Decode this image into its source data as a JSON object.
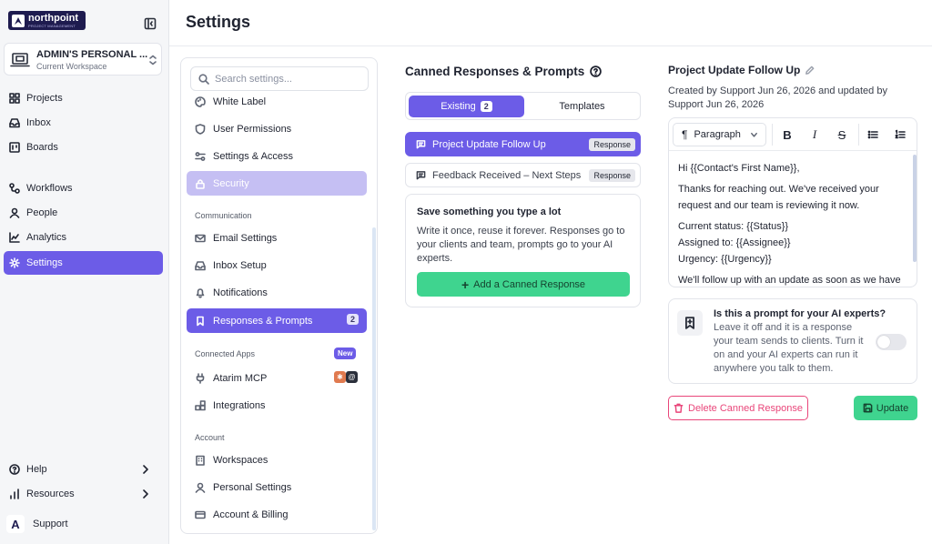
{
  "app": {
    "brand": "northpoint",
    "brand_tagline": "PROJECT MANAGEMENT",
    "support_logo_letter": "A"
  },
  "workspace": {
    "name": "ADMIN'S PERSONAL ...",
    "subtitle": "Current Workspace"
  },
  "nav": {
    "items": [
      {
        "label": "Projects",
        "icon": "grid-icon"
      },
      {
        "label": "Inbox",
        "icon": "inbox-icon"
      },
      {
        "label": "Boards",
        "icon": "board-icon"
      },
      {
        "label": "Workflows",
        "icon": "workflow-icon"
      },
      {
        "label": "People",
        "icon": "person-icon"
      },
      {
        "label": "Analytics",
        "icon": "analytics-icon"
      },
      {
        "label": "Settings",
        "icon": "gear-icon",
        "active": true
      }
    ],
    "help": "Help",
    "resources": "Resources",
    "support": "Support"
  },
  "header": {
    "title": "Settings"
  },
  "settings_menu": {
    "search_placeholder": "Search settings...",
    "items": {
      "white_label": "White Label",
      "user_permissions": "User Permissions",
      "settings_access": "Settings & Access",
      "security": "Security",
      "email_settings": "Email Settings",
      "inbox_setup": "Inbox Setup",
      "notifications": "Notifications",
      "responses_prompts": "Responses & Prompts",
      "responses_count": "2",
      "atarim_mcp": "Atarim MCP",
      "integrations": "Integrations",
      "workspaces": "Workspaces",
      "personal_settings": "Personal Settings",
      "account_billing": "Account & Billing"
    },
    "sections": {
      "communication": "Communication",
      "connected_apps": "Connected Apps",
      "connected_apps_badge": "New",
      "account": "Account"
    }
  },
  "canned": {
    "title": "Canned Responses & Prompts",
    "tabs": {
      "existing": "Existing",
      "existing_count": "2",
      "templates": "Templates"
    },
    "responses": [
      {
        "name": "Project Update Follow Up",
        "tag": "Response"
      },
      {
        "name": "Feedback Received – Next Steps",
        "tag": "Response"
      }
    ],
    "empty": {
      "heading": "Save something you type a lot",
      "text": "Write it once, reuse it forever. Responses go to your clients and team, prompts go to your AI experts.",
      "button": "Add a Canned Response"
    }
  },
  "editor": {
    "title": "Project Update Follow Up",
    "meta": "Created by Support Jun 26, 2026 and updated by Support Jun 26, 2026",
    "format": "Paragraph",
    "body": {
      "greeting": "Hi {{Contact's First Name}},",
      "p1": "Thanks for reaching out. We've received your request and our team is reviewing it now.",
      "status": "Current status: {{Status}}",
      "assigned": "Assigned to: {{Assignee}}",
      "urgency": "Urgency: {{Urgency}}",
      "p2": "We'll follow up with an update as soon as we have"
    },
    "prompt_heading": "Is this a prompt for your AI experts?",
    "prompt_text": "Leave it off and it is a response your team sends to clients. Turn it on and your AI experts can run it anywhere you talk to them.",
    "prompt_toggle_on": false,
    "delete_label": "Delete Canned Response",
    "update_label": "Update"
  },
  "colors": {
    "accent": "#6c5ce7",
    "success": "#3fd48f",
    "danger": "#e9467a",
    "brand_dark": "#1e1b4f"
  }
}
